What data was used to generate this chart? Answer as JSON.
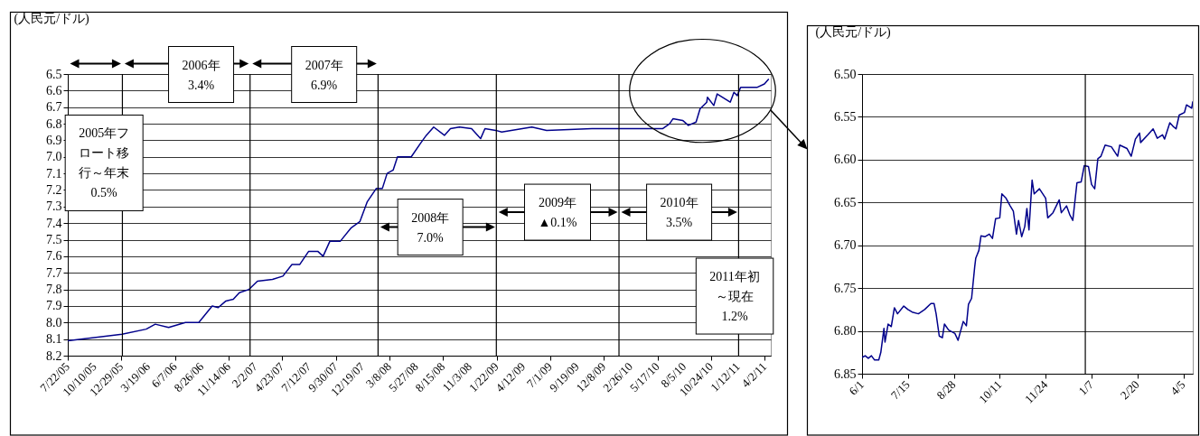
{
  "chart_data": [
    {
      "type": "line",
      "ylabel": "(人民元/ドル)",
      "grid": "y",
      "xlim": [
        "2005-07-22",
        "2011-04-20"
      ],
      "ylim": [
        8.2,
        6.5
      ],
      "xticks": [
        {
          "value": "2005-07-22",
          "label": "7/22/05"
        },
        {
          "value": "2005-10-10",
          "label": "10/10/05"
        },
        {
          "value": "2005-12-29",
          "label": "12/29/05"
        },
        {
          "value": "2006-03-19",
          "label": "3/19/06"
        },
        {
          "value": "2006-06-07",
          "label": "6/7/06"
        },
        {
          "value": "2006-08-26",
          "label": "8/26/06"
        },
        {
          "value": "2006-11-14",
          "label": "11/14/06"
        },
        {
          "value": "2007-02-02",
          "label": "2/2/07"
        },
        {
          "value": "2007-04-23",
          "label": "4/23/07"
        },
        {
          "value": "2007-07-12",
          "label": "7/12/07"
        },
        {
          "value": "2007-09-30",
          "label": "9/30/07"
        },
        {
          "value": "2007-12-19",
          "label": "12/19/07"
        },
        {
          "value": "2008-03-08",
          "label": "3/8/08"
        },
        {
          "value": "2008-05-27",
          "label": "5/27/08"
        },
        {
          "value": "2008-08-15",
          "label": "8/15/08"
        },
        {
          "value": "2008-11-03",
          "label": "11/3/08"
        },
        {
          "value": "2009-01-22",
          "label": "1/22/09"
        },
        {
          "value": "2009-04-12",
          "label": "4/12/09"
        },
        {
          "value": "2009-07-01",
          "label": "7/1/09"
        },
        {
          "value": "2009-09-19",
          "label": "9/19/09"
        },
        {
          "value": "2009-12-08",
          "label": "12/8/09"
        },
        {
          "value": "2010-02-26",
          "label": "2/26/10"
        },
        {
          "value": "2010-05-17",
          "label": "5/17/10"
        },
        {
          "value": "2010-08-05",
          "label": "8/5/10"
        },
        {
          "value": "2010-10-24",
          "label": "10/24/10"
        },
        {
          "value": "2011-01-12",
          "label": "1/12/11"
        },
        {
          "value": "2011-04-02",
          "label": "4/2/11"
        }
      ],
      "yticks": [
        6.5,
        6.6,
        6.7,
        6.8,
        6.9,
        {
          "value": 7,
          "label": "7.0"
        },
        7.1,
        7.2,
        7.3,
        7.4,
        7.5,
        7.6,
        7.7,
        7.8,
        7.9,
        {
          "value": 8,
          "label": "8.0"
        },
        8.1,
        8.2
      ],
      "x": [
        "2005-07-22",
        "2005-12-31",
        "2006-03-13",
        "2006-04-09",
        "2006-05-19",
        "2006-07-08",
        "2006-08-17",
        "2006-09-26",
        "2006-10-14",
        "2006-11-06",
        "2006-11-28",
        "2006-12-16",
        "2007-01-14",
        "2007-02-08",
        "2007-03-25",
        "2007-04-25",
        "2007-05-22",
        "2007-06-14",
        "2007-07-11",
        "2007-08-07",
        "2007-08-23",
        "2007-09-12",
        "2007-10-13",
        "2007-11-14",
        "2007-12-11",
        "2008-01-02",
        "2008-01-29",
        "2008-02-16",
        "2008-03-01",
        "2008-03-19",
        "2008-04-01",
        "2008-05-12",
        "2008-06-08",
        "2008-06-26",
        "2008-07-18",
        "2008-08-19",
        "2008-09-06",
        "2008-10-03",
        "2008-11-08",
        "2008-12-05",
        "2008-12-18",
        "2009-01-19",
        "2009-02-06",
        "2009-05-07",
        "2009-06-20",
        "2009-11-02",
        "2010-02-18",
        "2010-06-01",
        "2010-06-22",
        "2010-07-02",
        "2010-07-31",
        "2010-08-17",
        "2010-09-09",
        "2010-09-21",
        "2010-10-11",
        "2010-10-13",
        "2010-11-01",
        "2010-11-11",
        "2010-12-20",
        "2010-12-31",
        "2011-01-10",
        "2011-01-20",
        "2011-02-18",
        "2011-03-11",
        "2011-04-01",
        "2011-04-14"
      ],
      "series": [
        {
          "color": "#00008b",
          "values": [
            8.11,
            8.07,
            8.04,
            8.01,
            8.03,
            8.0,
            8.0,
            7.9,
            7.91,
            7.87,
            7.86,
            7.82,
            7.8,
            7.75,
            7.74,
            7.72,
            7.65,
            7.65,
            7.57,
            7.57,
            7.6,
            7.51,
            7.51,
            7.43,
            7.39,
            7.27,
            7.19,
            7.19,
            7.1,
            7.08,
            7.0,
            7.0,
            6.92,
            6.87,
            6.82,
            6.87,
            6.83,
            6.82,
            6.83,
            6.89,
            6.83,
            6.84,
            6.85,
            6.82,
            6.84,
            6.83,
            6.83,
            6.83,
            6.8,
            6.77,
            6.78,
            6.81,
            6.79,
            6.71,
            6.67,
            6.64,
            6.69,
            6.62,
            6.67,
            6.61,
            6.63,
            6.58,
            6.58,
            6.58,
            6.56,
            6.53
          ]
        }
      ],
      "ref_lines": [
        {
          "axis": "x",
          "value": "2006-01-01"
        },
        {
          "axis": "x",
          "value": "2007-01-17"
        },
        {
          "axis": "x",
          "value": "2008-02-03"
        },
        {
          "axis": "x",
          "value": "2009-01-21"
        },
        {
          "axis": "x",
          "value": "2010-01-22"
        },
        {
          "axis": "x",
          "value": "2011-01-14"
        }
      ],
      "annotations": [
        "2005年フロート移行～年末0.5%",
        "2006年3.4%",
        "2007年6.9%",
        "2008年7.0%",
        "2009年▲0.1%",
        "2010年3.5%",
        "2011年初～現在1.2%"
      ]
    },
    {
      "type": "line",
      "ylabel": "(人民元/ドル)",
      "grid": "y",
      "xlim": [
        "2010-06-01",
        "2011-04-14"
      ],
      "ylim": [
        6.85,
        6.5
      ],
      "xticks": [
        {
          "value": "2010-06-01",
          "label": "6/1"
        },
        {
          "value": "2010-07-15",
          "label": "7/15"
        },
        {
          "value": "2010-08-28",
          "label": "8/28"
        },
        {
          "value": "2010-10-11",
          "label": "10/11"
        },
        {
          "value": "2010-11-24",
          "label": "11/24"
        },
        {
          "value": "2011-01-07",
          "label": "1/7"
        },
        {
          "value": "2011-02-20",
          "label": "2/20"
        },
        {
          "value": "2011-04-05",
          "label": "4/5"
        }
      ],
      "yticks": [
        {
          "value": 6.5,
          "label": "6.50"
        },
        6.55,
        {
          "value": 6.6,
          "label": "6.60"
        },
        6.65,
        {
          "value": 6.7,
          "label": "6.70"
        },
        6.75,
        {
          "value": 6.8,
          "label": "6.80"
        },
        6.85
      ],
      "x": [
        "2010-06-01",
        "2010-06-04",
        "2010-06-07",
        "2010-06-10",
        "2010-06-13",
        "2010-06-17",
        "2010-06-19",
        "2010-06-22",
        "2010-06-23",
        "2010-06-26",
        "2010-06-29",
        "2010-07-02",
        "2010-07-05",
        "2010-07-11",
        "2010-07-15",
        "2010-07-19",
        "2010-07-25",
        "2010-07-31",
        "2010-08-06",
        "2010-08-09",
        "2010-08-11",
        "2010-08-14",
        "2010-08-17",
        "2010-08-19",
        "2010-08-23",
        "2010-08-29",
        "2010-09-01",
        "2010-09-06",
        "2010-09-09",
        "2010-09-11",
        "2010-09-14",
        "2010-09-17",
        "2010-09-18",
        "2010-09-21",
        "2010-09-23",
        "2010-09-27",
        "2010-10-01",
        "2010-10-04",
        "2010-10-07",
        "2010-10-11",
        "2010-10-13",
        "2010-10-17",
        "2010-10-21",
        "2010-10-24",
        "2010-10-27",
        "2010-10-29",
        "2010-11-01",
        "2010-11-04",
        "2010-11-06",
        "2010-11-08",
        "2010-11-10",
        "2010-11-11",
        "2010-11-13",
        "2010-11-18",
        "2010-11-24",
        "2010-11-26",
        "2010-12-01",
        "2010-12-07",
        "2010-12-09",
        "2010-12-14",
        "2010-12-17",
        "2010-12-20",
        "2010-12-24",
        "2010-12-28",
        "2010-12-31",
        "2011-01-04",
        "2011-01-07",
        "2011-01-10",
        "2011-01-13",
        "2011-01-16",
        "2011-01-20",
        "2011-01-26",
        "2011-02-01",
        "2011-02-03",
        "2011-02-10",
        "2011-02-14",
        "2011-02-18",
        "2011-02-22",
        "2011-02-23",
        "2011-03-02",
        "2011-03-07",
        "2011-03-11",
        "2011-03-16",
        "2011-03-18",
        "2011-03-23",
        "2011-03-26",
        "2011-03-29",
        "2011-04-01",
        "2011-04-06",
        "2011-04-08",
        "2011-04-13",
        "2011-04-14"
      ],
      "series": [
        {
          "color": "#00008b",
          "values": [
            6.831,
            6.829,
            6.832,
            6.829,
            6.834,
            6.834,
            6.825,
            6.797,
            6.813,
            6.792,
            6.795,
            6.773,
            6.78,
            6.771,
            6.775,
            6.778,
            6.78,
            6.775,
            6.768,
            6.768,
            6.78,
            6.806,
            6.808,
            6.792,
            6.799,
            6.803,
            6.811,
            6.789,
            6.794,
            6.769,
            6.762,
            6.725,
            6.715,
            6.706,
            6.689,
            6.69,
            6.687,
            6.692,
            6.669,
            6.668,
            6.64,
            6.645,
            6.654,
            6.66,
            6.687,
            6.671,
            6.69,
            6.678,
            6.657,
            6.682,
            6.643,
            6.624,
            6.64,
            6.634,
            6.645,
            6.668,
            6.662,
            6.647,
            6.662,
            6.654,
            6.664,
            6.671,
            6.627,
            6.626,
            6.607,
            6.608,
            6.629,
            6.634,
            6.599,
            6.596,
            6.583,
            6.585,
            6.596,
            6.583,
            6.587,
            6.596,
            6.576,
            6.569,
            6.58,
            6.571,
            6.564,
            6.575,
            6.571,
            6.576,
            6.557,
            6.561,
            6.564,
            6.548,
            6.545,
            6.536,
            6.54,
            6.532
          ]
        }
      ],
      "ref_lines": [
        {
          "axis": "x",
          "value": "2011-01-01"
        }
      ]
    }
  ]
}
